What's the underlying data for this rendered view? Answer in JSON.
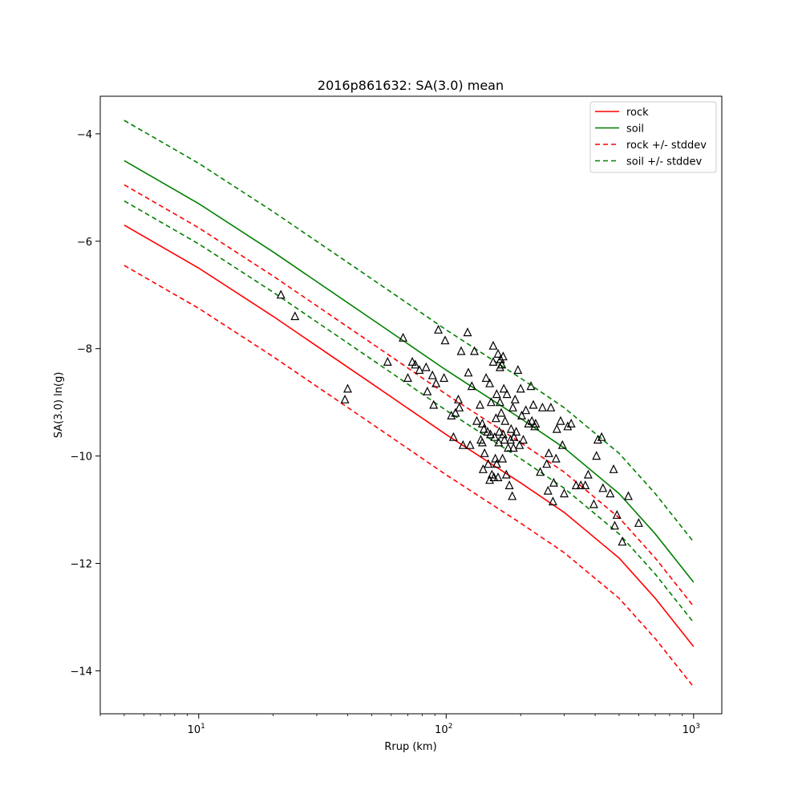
{
  "chart_data": {
    "type": "line",
    "title": "2016p861632: SA(3.0) mean",
    "xlabel": "Rrup (km)",
    "ylabel": "SA(3.0) ln(g)",
    "x_scale": "log",
    "xlim": [
      4,
      1300
    ],
    "ylim": [
      -14.8,
      -3.3
    ],
    "x_ticks": [
      10,
      100,
      1000
    ],
    "x_tick_labels": [
      {
        "base": "10",
        "exp": "1"
      },
      {
        "base": "10",
        "exp": "2"
      },
      {
        "base": "10",
        "exp": "3"
      }
    ],
    "y_ticks": [
      -4,
      -6,
      -8,
      -10,
      -12,
      -14
    ],
    "y_tick_labels": [
      "−4",
      "−6",
      "−8",
      "−10",
      "−12",
      "−14"
    ],
    "grid": false,
    "legend_position": "top-right",
    "series": [
      {
        "name": "rock",
        "color": "#ff0000",
        "dash": false,
        "x": [
          5,
          10,
          20,
          50,
          100,
          200,
          300,
          500,
          700,
          1000
        ],
        "y": [
          -5.7,
          -6.5,
          -7.4,
          -8.65,
          -9.6,
          -10.5,
          -11.05,
          -11.9,
          -12.65,
          -13.55
        ]
      },
      {
        "name": "soil",
        "color": "#008000",
        "dash": false,
        "x": [
          5,
          10,
          20,
          50,
          100,
          200,
          300,
          500,
          700,
          1000
        ],
        "y": [
          -4.5,
          -5.3,
          -6.2,
          -7.45,
          -8.4,
          -9.3,
          -9.85,
          -10.7,
          -11.45,
          -12.35
        ]
      },
      {
        "name": "rock +/- stddev",
        "color": "#ff0000",
        "dash": true,
        "x": [
          5,
          10,
          20,
          50,
          100,
          200,
          300,
          500,
          700,
          1000
        ],
        "y": [
          -4.95,
          -5.75,
          -6.65,
          -7.9,
          -8.85,
          -9.75,
          -10.3,
          -11.15,
          -11.9,
          -12.8
        ]
      },
      {
        "name": "rock +/- stddev",
        "color": "#ff0000",
        "dash": true,
        "legend": false,
        "x": [
          5,
          10,
          20,
          50,
          100,
          200,
          300,
          500,
          700,
          1000
        ],
        "y": [
          -6.45,
          -7.25,
          -8.15,
          -9.4,
          -10.35,
          -11.25,
          -11.8,
          -12.65,
          -13.4,
          -14.3
        ]
      },
      {
        "name": "soil +/- stddev",
        "color": "#008000",
        "dash": true,
        "x": [
          5,
          10,
          20,
          50,
          100,
          200,
          300,
          500,
          700,
          1000
        ],
        "y": [
          -3.75,
          -4.55,
          -5.45,
          -6.7,
          -7.65,
          -8.55,
          -9.1,
          -9.95,
          -10.7,
          -11.6
        ]
      },
      {
        "name": "soil +/- stddev",
        "color": "#008000",
        "dash": true,
        "legend": false,
        "x": [
          5,
          10,
          20,
          50,
          100,
          200,
          300,
          500,
          700,
          1000
        ],
        "y": [
          -5.25,
          -6.05,
          -6.95,
          -8.2,
          -9.15,
          -10.05,
          -10.6,
          -11.45,
          -12.2,
          -13.1
        ]
      }
    ],
    "observations": {
      "marker": "triangle",
      "color": "#000000",
      "points": [
        [
          21.5,
          -7.0
        ],
        [
          24.5,
          -7.4
        ],
        [
          39,
          -8.95
        ],
        [
          40,
          -8.75
        ],
        [
          58,
          -8.25
        ],
        [
          67,
          -7.8
        ],
        [
          70,
          -8.55
        ],
        [
          73,
          -8.25
        ],
        [
          75,
          -8.3
        ],
        [
          78,
          -8.4
        ],
        [
          83,
          -8.35
        ],
        [
          84,
          -8.8
        ],
        [
          88,
          -8.5
        ],
        [
          89,
          -9.05
        ],
        [
          91,
          -8.65
        ],
        [
          93,
          -7.65
        ],
        [
          98,
          -8.55
        ],
        [
          99,
          -7.85
        ],
        [
          105,
          -9.25
        ],
        [
          107,
          -9.65
        ],
        [
          109,
          -9.2
        ],
        [
          112,
          -8.95
        ],
        [
          113,
          -9.1
        ],
        [
          115,
          -8.05
        ],
        [
          117,
          -9.8
        ],
        [
          122,
          -7.7
        ],
        [
          123,
          -8.45
        ],
        [
          125,
          -9.8
        ],
        [
          127,
          -8.7
        ],
        [
          130,
          -8.05
        ],
        [
          133,
          -9.35
        ],
        [
          137,
          -9.05
        ],
        [
          138,
          -9.7
        ],
        [
          140,
          -9.75
        ],
        [
          140,
          -9.4
        ],
        [
          141,
          -10.25
        ],
        [
          142,
          -9.5
        ],
        [
          143,
          -9.95
        ],
        [
          145,
          -8.55
        ],
        [
          147,
          -9.55
        ],
        [
          148,
          -10.15
        ],
        [
          150,
          -8.65
        ],
        [
          150,
          -10.45
        ],
        [
          151,
          -9.6
        ],
        [
          152,
          -9.0
        ],
        [
          153,
          -10.35
        ],
        [
          155,
          -7.95
        ],
        [
          155,
          -8.25
        ],
        [
          156,
          -10.4
        ],
        [
          157,
          -9.65
        ],
        [
          158,
          -10.05
        ],
        [
          159,
          -9.3
        ],
        [
          160,
          -10.15
        ],
        [
          160,
          -8.85
        ],
        [
          162,
          -8.1
        ],
        [
          162,
          -10.4
        ],
        [
          163,
          -9.75
        ],
        [
          164,
          -9.55
        ],
        [
          165,
          -8.35
        ],
        [
          165,
          -9.0
        ],
        [
          166,
          -8.2
        ],
        [
          167,
          -9.2
        ],
        [
          168,
          -8.3
        ],
        [
          169,
          -10.05
        ],
        [
          170,
          -8.15
        ],
        [
          170,
          -9.6
        ],
        [
          171,
          -8.75
        ],
        [
          172,
          -9.7
        ],
        [
          173,
          -9.35
        ],
        [
          175,
          -10.35
        ],
        [
          176,
          -8.85
        ],
        [
          178,
          -9.85
        ],
        [
          180,
          -10.55
        ],
        [
          182,
          -9.7
        ],
        [
          183,
          -9.5
        ],
        [
          185,
          -10.75
        ],
        [
          186,
          -9.1
        ],
        [
          187,
          -9.85
        ],
        [
          188,
          -9.65
        ],
        [
          190,
          -8.95
        ],
        [
          192,
          -9.55
        ],
        [
          195,
          -8.4
        ],
        [
          198,
          -9.8
        ],
        [
          200,
          -8.75
        ],
        [
          202,
          -9.25
        ],
        [
          205,
          -9.7
        ],
        [
          210,
          -9.15
        ],
        [
          215,
          -9.4
        ],
        [
          220,
          -8.7
        ],
        [
          222,
          -9.35
        ],
        [
          225,
          -9.05
        ],
        [
          228,
          -9.45
        ],
        [
          230,
          -9.4
        ],
        [
          240,
          -10.3
        ],
        [
          245,
          -9.1
        ],
        [
          255,
          -10.15
        ],
        [
          258,
          -10.65
        ],
        [
          260,
          -9.95
        ],
        [
          265,
          -9.1
        ],
        [
          270,
          -10.85
        ],
        [
          272,
          -10.5
        ],
        [
          278,
          -10.05
        ],
        [
          280,
          -9.5
        ],
        [
          290,
          -9.35
        ],
        [
          295,
          -9.8
        ],
        [
          300,
          -10.7
        ],
        [
          310,
          -9.45
        ],
        [
          320,
          -9.4
        ],
        [
          335,
          -10.55
        ],
        [
          350,
          -10.55
        ],
        [
          365,
          -10.55
        ],
        [
          375,
          -10.35
        ],
        [
          395,
          -10.9
        ],
        [
          405,
          -10.0
        ],
        [
          410,
          -9.7
        ],
        [
          425,
          -9.65
        ],
        [
          430,
          -10.6
        ],
        [
          460,
          -10.7
        ],
        [
          475,
          -10.25
        ],
        [
          480,
          -11.3
        ],
        [
          490,
          -11.1
        ],
        [
          515,
          -11.6
        ],
        [
          545,
          -10.75
        ],
        [
          600,
          -11.25
        ]
      ]
    }
  }
}
